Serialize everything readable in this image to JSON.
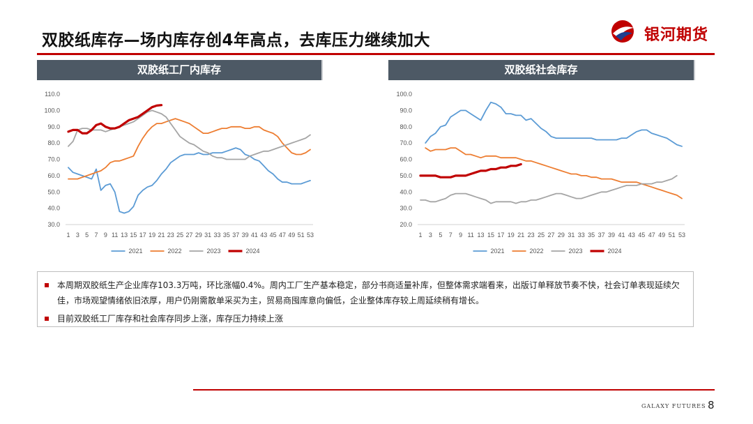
{
  "header": {
    "title": "双胶纸库存—场内库存创4年高点，去库压力继续加大",
    "logo_text": "银河期货"
  },
  "colors": {
    "accent": "#c00000",
    "panel_header": "#4d5965"
  },
  "chart_data": [
    {
      "type": "line",
      "title": "双胶纸工厂内库存",
      "ylim": [
        30,
        110
      ],
      "yticks": [
        "110.0",
        "100.0",
        "90.0",
        "80.0",
        "70.0",
        "60.0",
        "50.0",
        "40.0",
        "30.0"
      ],
      "x": [
        1,
        3,
        5,
        7,
        9,
        11,
        13,
        15,
        17,
        19,
        21,
        23,
        25,
        27,
        29,
        31,
        33,
        35,
        37,
        39,
        41,
        43,
        45,
        47,
        49,
        51,
        53
      ],
      "xlim": [
        1,
        53
      ],
      "legend_position": "bottom",
      "series": [
        {
          "name": "2021",
          "color": "#5b9bd5",
          "width": 1.8,
          "x": [
            1,
            2,
            3,
            4,
            5,
            6,
            7,
            8,
            9,
            10,
            11,
            12,
            13,
            14,
            15,
            16,
            17,
            18,
            19,
            20,
            21,
            22,
            23,
            24,
            25,
            26,
            27,
            28,
            29,
            30,
            31,
            32,
            33,
            34,
            35,
            36,
            37,
            38,
            39,
            40,
            41,
            42,
            43,
            44,
            45,
            46,
            47,
            48,
            49,
            50,
            51,
            52,
            53
          ],
          "values": [
            65,
            62,
            61,
            60,
            59,
            58,
            64,
            51,
            54,
            55,
            50,
            38,
            37,
            38,
            41,
            48,
            51,
            53,
            54,
            57,
            61,
            64,
            68,
            70,
            72,
            73,
            73,
            73,
            74,
            73,
            73,
            74,
            74,
            74,
            75,
            76,
            77,
            76,
            73,
            72,
            70,
            69,
            66,
            63,
            61,
            58,
            56,
            56,
            55,
            55,
            55,
            56,
            57
          ]
        },
        {
          "name": "2022",
          "color": "#ed7d31",
          "width": 1.8,
          "x": [
            1,
            2,
            3,
            4,
            5,
            6,
            7,
            8,
            9,
            10,
            11,
            12,
            13,
            14,
            15,
            16,
            17,
            18,
            19,
            20,
            21,
            22,
            23,
            24,
            25,
            26,
            27,
            28,
            29,
            30,
            31,
            32,
            33,
            34,
            35,
            36,
            37,
            38,
            39,
            40,
            41,
            42,
            43,
            44,
            45,
            46,
            47,
            48,
            49,
            50,
            51,
            52,
            53
          ],
          "values": [
            58,
            58,
            58,
            59,
            60,
            61,
            62,
            63,
            65,
            68,
            69,
            69,
            70,
            71,
            72,
            78,
            83,
            87,
            90,
            92,
            92,
            93,
            94,
            95,
            94,
            93,
            92,
            90,
            88,
            86,
            86,
            87,
            88,
            89,
            89,
            90,
            90,
            90,
            89,
            89,
            90,
            90,
            88,
            87,
            86,
            84,
            80,
            77,
            74,
            73,
            73,
            74,
            76
          ]
        },
        {
          "name": "2023",
          "color": "#a5a5a5",
          "width": 1.8,
          "x": [
            1,
            2,
            3,
            4,
            5,
            6,
            7,
            8,
            9,
            10,
            11,
            12,
            13,
            14,
            15,
            16,
            17,
            18,
            19,
            20,
            21,
            22,
            23,
            24,
            25,
            26,
            27,
            28,
            29,
            30,
            31,
            32,
            33,
            34,
            35,
            36,
            37,
            38,
            39,
            40,
            41,
            42,
            43,
            44,
            45,
            46,
            47,
            48,
            49,
            50,
            51,
            52,
            53
          ],
          "values": [
            78,
            81,
            88,
            89,
            89,
            88,
            88,
            88,
            87,
            88,
            89,
            90,
            91,
            92,
            93,
            95,
            97,
            99,
            100,
            99,
            98,
            96,
            92,
            88,
            84,
            82,
            80,
            79,
            77,
            75,
            74,
            72,
            71,
            71,
            70,
            70,
            70,
            70,
            70,
            72,
            73,
            74,
            75,
            75,
            76,
            77,
            78,
            79,
            80,
            81,
            82,
            83,
            85
          ]
        },
        {
          "name": "2024",
          "color": "#c00000",
          "width": 3.2,
          "x": [
            1,
            2,
            3,
            4,
            5,
            6,
            7,
            8,
            9,
            10,
            11,
            12,
            13,
            14,
            15,
            16,
            17,
            18,
            19,
            20,
            21
          ],
          "values": [
            87,
            88,
            88,
            86,
            86,
            88,
            91,
            92,
            90,
            89,
            89,
            90,
            92,
            94,
            95,
            96,
            98,
            100,
            102,
            103,
            103.3
          ]
        }
      ]
    },
    {
      "type": "line",
      "title": "双胶纸社会库存",
      "ylim": [
        20,
        100
      ],
      "yticks": [
        "100.0",
        "90.0",
        "80.0",
        "70.0",
        "60.0",
        "50.0",
        "40.0",
        "30.0",
        "20.0"
      ],
      "x": [
        1,
        3,
        5,
        7,
        9,
        11,
        13,
        15,
        17,
        19,
        21,
        23,
        25,
        27,
        29,
        31,
        33,
        35,
        37,
        39,
        41,
        43,
        45,
        47,
        49,
        51,
        53
      ],
      "xlim": [
        1,
        53
      ],
      "legend_position": "bottom",
      "series": [
        {
          "name": "2021",
          "color": "#5b9bd5",
          "width": 1.8,
          "x": [
            2,
            3,
            4,
            5,
            6,
            7,
            8,
            9,
            10,
            11,
            12,
            13,
            14,
            15,
            16,
            17,
            18,
            19,
            20,
            21,
            22,
            23,
            24,
            25,
            26,
            27,
            28,
            29,
            30,
            31,
            32,
            33,
            34,
            35,
            36,
            37,
            38,
            39,
            40,
            41,
            42,
            43,
            44,
            45,
            46,
            47,
            48,
            49,
            50,
            51,
            52,
            53
          ],
          "values": [
            70,
            74,
            76,
            80,
            81,
            86,
            88,
            90,
            90,
            88,
            86,
            84,
            90,
            95,
            94,
            92,
            88,
            88,
            87,
            87,
            84,
            85,
            82,
            79,
            77,
            74,
            73,
            73,
            73,
            73,
            73,
            73,
            73,
            73,
            72,
            72,
            72,
            72,
            72,
            73,
            73,
            75,
            77,
            78,
            78,
            76,
            75,
            74,
            73,
            71,
            69,
            68
          ]
        },
        {
          "name": "2022",
          "color": "#ed7d31",
          "width": 1.8,
          "x": [
            2,
            3,
            4,
            5,
            6,
            7,
            8,
            9,
            10,
            11,
            12,
            13,
            14,
            15,
            16,
            17,
            18,
            19,
            20,
            21,
            22,
            23,
            24,
            25,
            26,
            27,
            28,
            29,
            30,
            31,
            32,
            33,
            34,
            35,
            36,
            37,
            38,
            39,
            40,
            41,
            42,
            43,
            44,
            45,
            46,
            47,
            48,
            49,
            50,
            51,
            52,
            53
          ],
          "values": [
            67,
            65,
            66,
            66,
            66,
            67,
            67,
            65,
            63,
            63,
            62,
            61,
            62,
            62,
            62,
            61,
            61,
            61,
            61,
            60,
            59,
            59,
            58,
            57,
            56,
            55,
            54,
            53,
            52,
            51,
            51,
            50,
            50,
            49,
            49,
            48,
            48,
            48,
            47,
            46,
            46,
            46,
            46,
            45,
            44,
            43,
            42,
            41,
            40,
            39,
            38,
            36
          ]
        },
        {
          "name": "2023",
          "color": "#a5a5a5",
          "width": 1.8,
          "x": [
            1,
            2,
            3,
            4,
            5,
            6,
            7,
            8,
            9,
            10,
            11,
            12,
            13,
            14,
            15,
            16,
            17,
            18,
            19,
            20,
            21,
            22,
            23,
            24,
            25,
            26,
            27,
            28,
            29,
            30,
            31,
            32,
            33,
            34,
            35,
            36,
            37,
            38,
            39,
            40,
            41,
            42,
            43,
            44,
            45,
            46,
            47,
            48,
            49,
            50,
            51,
            52
          ],
          "values": [
            35,
            35,
            34,
            34,
            35,
            36,
            38,
            39,
            39,
            39,
            38,
            37,
            36,
            35,
            33,
            34,
            34,
            34,
            34,
            33,
            34,
            34,
            35,
            35,
            36,
            37,
            38,
            39,
            39,
            38,
            37,
            36,
            36,
            37,
            38,
            39,
            40,
            40,
            41,
            42,
            43,
            44,
            44,
            44,
            45,
            45,
            45,
            46,
            46,
            47,
            48,
            50
          ]
        },
        {
          "name": "2024",
          "color": "#c00000",
          "width": 3.2,
          "x": [
            1,
            2,
            3,
            4,
            5,
            6,
            7,
            8,
            9,
            10,
            11,
            12,
            13,
            14,
            15,
            16,
            17,
            18,
            19,
            20,
            21
          ],
          "values": [
            50,
            50,
            50,
            50,
            49,
            49,
            49,
            50,
            50,
            50,
            51,
            52,
            53,
            53,
            54,
            54,
            55,
            55,
            56,
            56,
            57
          ]
        }
      ]
    }
  ],
  "notes": [
    "本周期双胶纸生产企业库存103.3万吨，环比涨幅0.4%。周内工厂生产基本稳定，部分书商适量补库，但整体需求端看来，出版订单释放节奏不快，社会订单表现延续欠佳，市场观望情绪依旧浓厚，用户仍刚需散单采买为主，贸易商囤库意向偏低，企业整体库存较上周延续稍有增长。",
    "目前双胶纸工厂库存和社会库存同步上涨，库存压力持续上涨"
  ],
  "footer": {
    "tag": "GALAXY FUTURES",
    "page_number": "8"
  }
}
